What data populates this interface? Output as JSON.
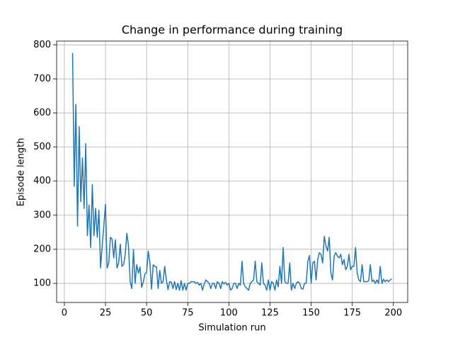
{
  "chart_data": {
    "type": "line",
    "title": "Change in performance during training",
    "xlabel": "Simulation run",
    "ylabel": "Episode length",
    "color": "#1f77b4",
    "grid": true,
    "xlim": [
      -4.7,
      208.7
    ],
    "ylim": [
      44,
      811
    ],
    "xticks": [
      0,
      25,
      50,
      75,
      100,
      125,
      150,
      175,
      200
    ],
    "yticks": [
      100,
      200,
      300,
      400,
      500,
      600,
      700,
      800
    ],
    "x": [
      5,
      6,
      7,
      8,
      9,
      10,
      11,
      12,
      13,
      14,
      15,
      16,
      17,
      18,
      19,
      20,
      21,
      22,
      23,
      24,
      25,
      26,
      27,
      28,
      29,
      30,
      31,
      32,
      33,
      34,
      35,
      36,
      37,
      38,
      39,
      40,
      41,
      42,
      43,
      44,
      45,
      46,
      47,
      48,
      49,
      50,
      51,
      52,
      53,
      54,
      55,
      56,
      57,
      58,
      59,
      60,
      61,
      62,
      63,
      64,
      65,
      66,
      67,
      68,
      69,
      70,
      71,
      72,
      73,
      74,
      75,
      76,
      77,
      78,
      79,
      80,
      81,
      82,
      83,
      84,
      85,
      86,
      87,
      88,
      89,
      90,
      91,
      92,
      93,
      94,
      95,
      96,
      97,
      98,
      99,
      100,
      101,
      102,
      103,
      104,
      105,
      106,
      107,
      108,
      109,
      110,
      111,
      112,
      113,
      114,
      115,
      116,
      117,
      118,
      119,
      120,
      121,
      122,
      123,
      124,
      125,
      126,
      127,
      128,
      129,
      130,
      131,
      132,
      133,
      134,
      135,
      136,
      137,
      138,
      139,
      140,
      141,
      142,
      143,
      144,
      145,
      146,
      147,
      148,
      149,
      150,
      151,
      152,
      153,
      154,
      155,
      156,
      157,
      158,
      159,
      160,
      161,
      162,
      163,
      164,
      165,
      166,
      167,
      168,
      169,
      170,
      171,
      172,
      173,
      174,
      175,
      176,
      177,
      178,
      179,
      180,
      181,
      182,
      183,
      184,
      185,
      186,
      187,
      188,
      189,
      190,
      191,
      192,
      193,
      194,
      195,
      196,
      197,
      198,
      199
    ],
    "values": [
      776,
      385,
      625,
      268,
      560,
      340,
      468,
      320,
      510,
      240,
      330,
      205,
      390,
      240,
      320,
      235,
      315,
      145,
      210,
      270,
      332,
      145,
      160,
      235,
      230,
      175,
      228,
      145,
      160,
      215,
      150,
      155,
      185,
      247,
      210,
      105,
      85,
      200,
      100,
      155,
      130,
      148,
      88,
      105,
      128,
      132,
      195,
      160,
      83,
      155,
      150,
      148,
      85,
      138,
      100,
      105,
      150,
      110,
      82,
      105,
      103,
      85,
      105,
      82,
      100,
      80,
      108,
      80,
      100,
      80,
      100,
      100,
      105,
      105,
      105,
      100,
      103,
      95,
      100,
      80,
      98,
      110,
      105,
      100,
      85,
      100,
      100,
      85,
      105,
      100,
      85,
      105,
      98,
      103,
      95,
      100,
      80,
      85,
      100,
      100,
      85,
      100,
      95,
      165,
      100,
      90,
      85,
      80,
      100,
      105,
      110,
      165,
      105,
      100,
      95,
      160,
      100,
      95,
      80,
      110,
      80,
      105,
      100,
      80,
      110,
      90,
      150,
      100,
      205,
      105,
      100,
      100,
      160,
      80,
      100,
      85,
      100,
      105,
      100,
      85,
      83,
      100,
      100,
      165,
      182,
      100,
      160,
      165,
      110,
      170,
      190,
      185,
      160,
      238,
      210,
      195,
      235,
      130,
      110,
      180,
      190,
      180,
      175,
      185,
      155,
      170,
      140,
      150,
      185,
      140,
      150,
      150,
      205,
      130,
      110,
      105,
      155,
      105,
      105,
      105,
      108,
      155,
      105,
      110,
      100,
      110,
      100,
      150,
      100,
      112,
      105,
      110,
      105,
      110,
      113
    ]
  }
}
